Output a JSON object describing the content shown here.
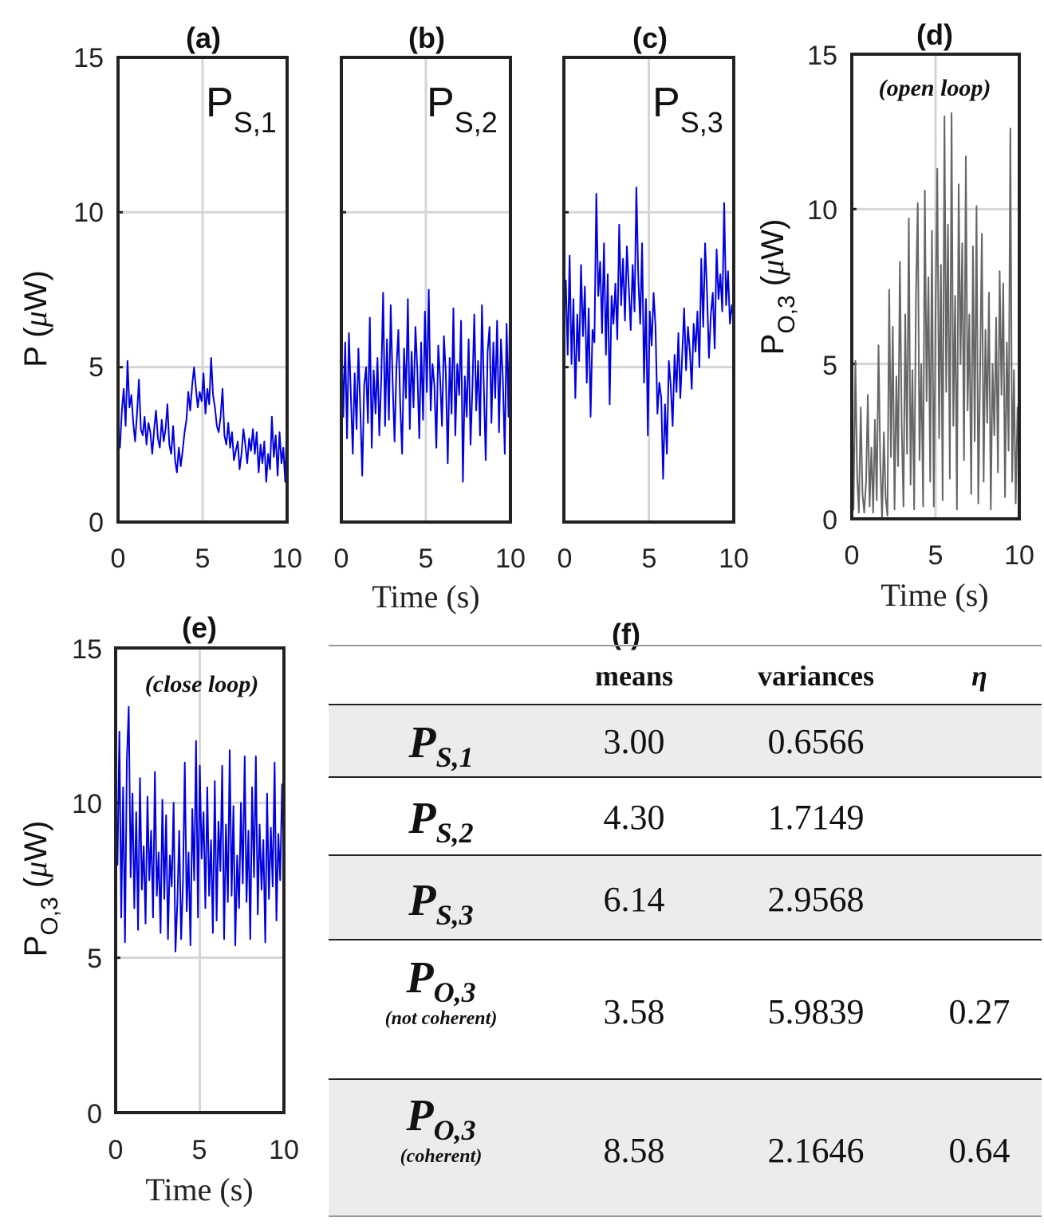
{
  "chart_data": [
    {
      "type": "line",
      "title": "(a)",
      "inset_label": {
        "main": "P",
        "sub": "S,1"
      },
      "ylabel": "P (μW)",
      "ylabel_main": "P (",
      "ylabel_mu": "μ",
      "ylabel_tail": "W)",
      "xlabel": "",
      "xlim": [
        0,
        10
      ],
      "ylim": [
        0,
        15
      ],
      "xticks": [
        "0",
        "5",
        "10"
      ],
      "yticks": [
        "0",
        "5",
        "10",
        "15"
      ],
      "grid": true,
      "series": [
        {
          "color": "#0000e0",
          "mean": 3.0,
          "variance": 0.6566,
          "values": [
            2.7,
            2.4,
            3.6,
            4.3,
            3.1,
            5.2,
            3.7,
            4.1,
            3.2,
            2.6,
            3.5,
            4.6,
            3.0,
            2.8,
            3.4,
            2.5,
            3.2,
            2.9,
            2.2,
            3.0,
            3.6,
            2.7,
            2.4,
            3.3,
            2.6,
            3.0,
            3.8,
            2.5,
            2.2,
            3.1,
            2.0,
            1.6,
            2.4,
            1.8,
            2.3,
            2.9,
            3.3,
            4.2,
            3.6,
            4.4,
            5.0,
            4.3,
            3.7,
            4.2,
            3.9,
            4.8,
            3.5,
            4.3,
            3.8,
            5.3,
            4.1,
            3.7,
            3.1,
            2.9,
            3.4,
            4.3,
            2.8,
            2.5,
            3.2,
            2.4,
            2.9,
            2.0,
            2.3,
            2.6,
            1.7,
            2.2,
            3.0,
            2.5,
            1.9,
            2.7,
            2.3,
            3.0,
            2.2,
            2.9,
            1.6,
            2.5,
            1.9,
            2.6,
            1.3,
            2.2,
            1.7,
            3.4,
            2.1,
            2.8,
            1.5,
            2.9,
            1.9,
            2.4,
            1.3,
            3.6
          ]
        }
      ]
    },
    {
      "type": "line",
      "title": "(b)",
      "inset_label": {
        "main": "P",
        "sub": "S,2"
      },
      "ylabel": "",
      "xlabel": "Time (s)",
      "xlim": [
        0,
        10
      ],
      "ylim": [
        0,
        15
      ],
      "xticks": [
        "0",
        "5",
        "10"
      ],
      "yticks": [],
      "grid": true,
      "series": [
        {
          "color": "#0000e0",
          "mean": 4.3,
          "variance": 1.7149,
          "values": [
            6.4,
            3.4,
            5.8,
            2.7,
            6.1,
            4.1,
            2.2,
            4.8,
            3.0,
            5.6,
            3.6,
            1.5,
            4.4,
            5.0,
            3.2,
            6.6,
            2.4,
            4.9,
            3.5,
            5.3,
            2.8,
            4.6,
            7.4,
            3.1,
            5.9,
            3.3,
            7.0,
            4.5,
            2.6,
            5.0,
            6.2,
            3.8,
            2.2,
            5.6,
            4.0,
            7.2,
            3.0,
            5.5,
            3.7,
            6.3,
            4.9,
            2.7,
            5.8,
            3.3,
            6.8,
            4.2,
            7.5,
            3.6,
            5.1,
            4.4,
            2.4,
            5.7,
            4.6,
            3.1,
            6.0,
            4.8,
            1.9,
            5.3,
            3.5,
            6.9,
            2.8,
            5.1,
            4.1,
            6.5,
            1.3,
            4.7,
            3.4,
            5.9,
            2.5,
            4.4,
            6.7,
            3.6,
            5.2,
            2.8,
            7.0,
            4.3,
            2.0,
            5.5,
            6.3,
            3.2,
            5.8,
            4.0,
            6.5,
            2.9,
            5.9,
            4.6,
            2.2,
            6.4,
            3.4,
            8.5
          ]
        }
      ]
    },
    {
      "type": "line",
      "title": "(c)",
      "inset_label": {
        "main": "P",
        "sub": "S,3"
      },
      "ylabel": "",
      "xlabel": "",
      "xlim": [
        0,
        10
      ],
      "ylim": [
        0,
        15
      ],
      "xticks": [
        "0",
        "5",
        "10"
      ],
      "yticks": [],
      "grid": true,
      "series": [
        {
          "color": "#0000e0",
          "mean": 6.14,
          "variance": 2.9568,
          "values": [
            6.5,
            7.8,
            5.4,
            8.6,
            5.1,
            7.2,
            4.0,
            6.7,
            5.2,
            8.3,
            6.0,
            7.6,
            4.5,
            6.9,
            3.4,
            6.2,
            5.8,
            10.6,
            7.3,
            8.4,
            6.1,
            9.0,
            5.4,
            8.0,
            3.8,
            7.3,
            6.4,
            7.7,
            5.9,
            9.6,
            7.0,
            8.5,
            6.5,
            8.9,
            7.6,
            6.2,
            8.3,
            6.8,
            10.8,
            7.9,
            6.4,
            9.0,
            4.5,
            7.2,
            2.8,
            6.8,
            5.7,
            7.4,
            6.3,
            3.5,
            4.5,
            4.0,
            1.4,
            3.8,
            2.2,
            5.2,
            4.4,
            3.1,
            5.4,
            4.2,
            6.1,
            4.0,
            5.4,
            6.9,
            4.9,
            6.3,
            5.5,
            4.3,
            6.4,
            5.5,
            6.8,
            5.0,
            8.5,
            6.3,
            9.0,
            7.4,
            5.3,
            6.7,
            7.4,
            5.6,
            8.8,
            7.2,
            8.0,
            6.8,
            10.3,
            7.0,
            8.1,
            6.4,
            7.0,
            6.5
          ]
        }
      ]
    },
    {
      "type": "line",
      "title": "(d)",
      "annotation": "(open loop)",
      "ylabel": "P_O,3 (μW)",
      "ylabel_main": "P",
      "ylabel_sub": "O,3",
      "ylabel_mu": "μ",
      "ylabel_tail": "W)",
      "xlabel": "Time (s)",
      "xlim": [
        0,
        10
      ],
      "ylim": [
        0,
        15
      ],
      "xticks": [
        "0",
        "5",
        "10"
      ],
      "yticks": [
        "0",
        "5",
        "10",
        "15"
      ],
      "grid": true,
      "series": [
        {
          "color": "#666666",
          "mean": 3.58,
          "variance": 5.9839,
          "values": [
            4.4,
            0.3,
            5.1,
            1.4,
            0.2,
            3.6,
            0.8,
            0.2,
            1.2,
            4.0,
            0.4,
            2.3,
            0.2,
            3.2,
            0.6,
            5.6,
            1.8,
            0.0,
            2.8,
            0.7,
            0.1,
            7.4,
            2.0,
            6.2,
            0.3,
            4.6,
            1.7,
            8.3,
            3.0,
            0.4,
            6.6,
            2.1,
            9.7,
            1.1,
            4.8,
            0.3,
            7.1,
            10.2,
            1.9,
            5.0,
            0.4,
            10.6,
            3.8,
            7.8,
            1.2,
            9.3,
            0.4,
            6.5,
            11.3,
            2.6,
            8.2,
            0.6,
            13.0,
            4.1,
            9.5,
            1.3,
            13.1,
            3.0,
            7.2,
            0.3,
            10.8,
            5.0,
            8.9,
            1.9,
            11.7,
            3.5,
            6.6,
            0.8,
            8.8,
            2.5,
            10.1,
            0.5,
            4.8,
            9.2,
            1.2,
            6.1,
            3.1,
            7.3,
            0.3,
            5.0,
            2.7,
            6.5,
            1.5,
            8.0,
            4.0,
            7.6,
            0.7,
            5.7,
            2.2,
            12.6,
            1.2,
            4.8,
            0.5,
            3.6,
            1.5
          ]
        }
      ]
    },
    {
      "type": "line",
      "title": "(e)",
      "annotation": "(close loop)",
      "ylabel": "P_O,3 (μW)",
      "ylabel_main": "P",
      "ylabel_sub": "O,3",
      "ylabel_mu": "μ",
      "ylabel_tail": "W)",
      "xlabel": "Time (s)",
      "xlim": [
        0,
        10
      ],
      "ylim": [
        0,
        15
      ],
      "xticks": [
        "0",
        "5",
        "10"
      ],
      "yticks": [
        "0",
        "5",
        "10",
        "15"
      ],
      "grid": true,
      "series": [
        {
          "color": "#0000e0",
          "mean": 8.58,
          "variance": 2.1646,
          "values": [
            10.3,
            8.0,
            12.3,
            6.3,
            10.5,
            5.5,
            11.4,
            13.1,
            7.6,
            10.3,
            6.6,
            9.7,
            5.9,
            10.8,
            7.2,
            8.6,
            6.1,
            10.2,
            7.5,
            9.1,
            6.3,
            11.0,
            7.0,
            8.4,
            5.8,
            10.1,
            6.9,
            9.6,
            5.6,
            8.3,
            7.3,
            10.0,
            5.2,
            6.8,
            9.1,
            5.6,
            7.4,
            11.3,
            6.5,
            8.4,
            5.4,
            9.8,
            7.5,
            12.0,
            6.3,
            11.2,
            8.2,
            9.7,
            6.6,
            10.5,
            7.0,
            8.8,
            5.8,
            10.7,
            6.2,
            9.4,
            7.8,
            11.2,
            5.6,
            9.3,
            6.8,
            11.7,
            7.0,
            9.9,
            5.4,
            8.3,
            6.6,
            10.0,
            7.4,
            11.5,
            6.8,
            9.1,
            5.6,
            10.5,
            7.6,
            11.5,
            6.4,
            9.3,
            7.2,
            8.8,
            5.5,
            10.3,
            6.9,
            9.2,
            7.3,
            11.3,
            6.2,
            9.0,
            7.5,
            10.6,
            8.0
          ]
        }
      ]
    },
    {
      "type": "table",
      "title": "(f)",
      "columns": [
        "",
        "means",
        "variances",
        "η"
      ],
      "rows": [
        {
          "label_main": "P",
          "label_sub": "S,1",
          "note": "",
          "mean": "3.00",
          "variance": "0.6566",
          "eta": ""
        },
        {
          "label_main": "P",
          "label_sub": "S,2",
          "note": "",
          "mean": "4.30",
          "variance": "1.7149",
          "eta": ""
        },
        {
          "label_main": "P",
          "label_sub": "S,3",
          "note": "",
          "mean": "6.14",
          "variance": "2.9568",
          "eta": ""
        },
        {
          "label_main": "P",
          "label_sub": "O,3",
          "note": "(not coherent)",
          "mean": "3.58",
          "variance": "5.9839",
          "eta": "0.27"
        },
        {
          "label_main": "P",
          "label_sub": "O,3",
          "note": "(coherent)",
          "mean": "8.58",
          "variance": "2.1646",
          "eta": "0.64"
        }
      ]
    }
  ]
}
